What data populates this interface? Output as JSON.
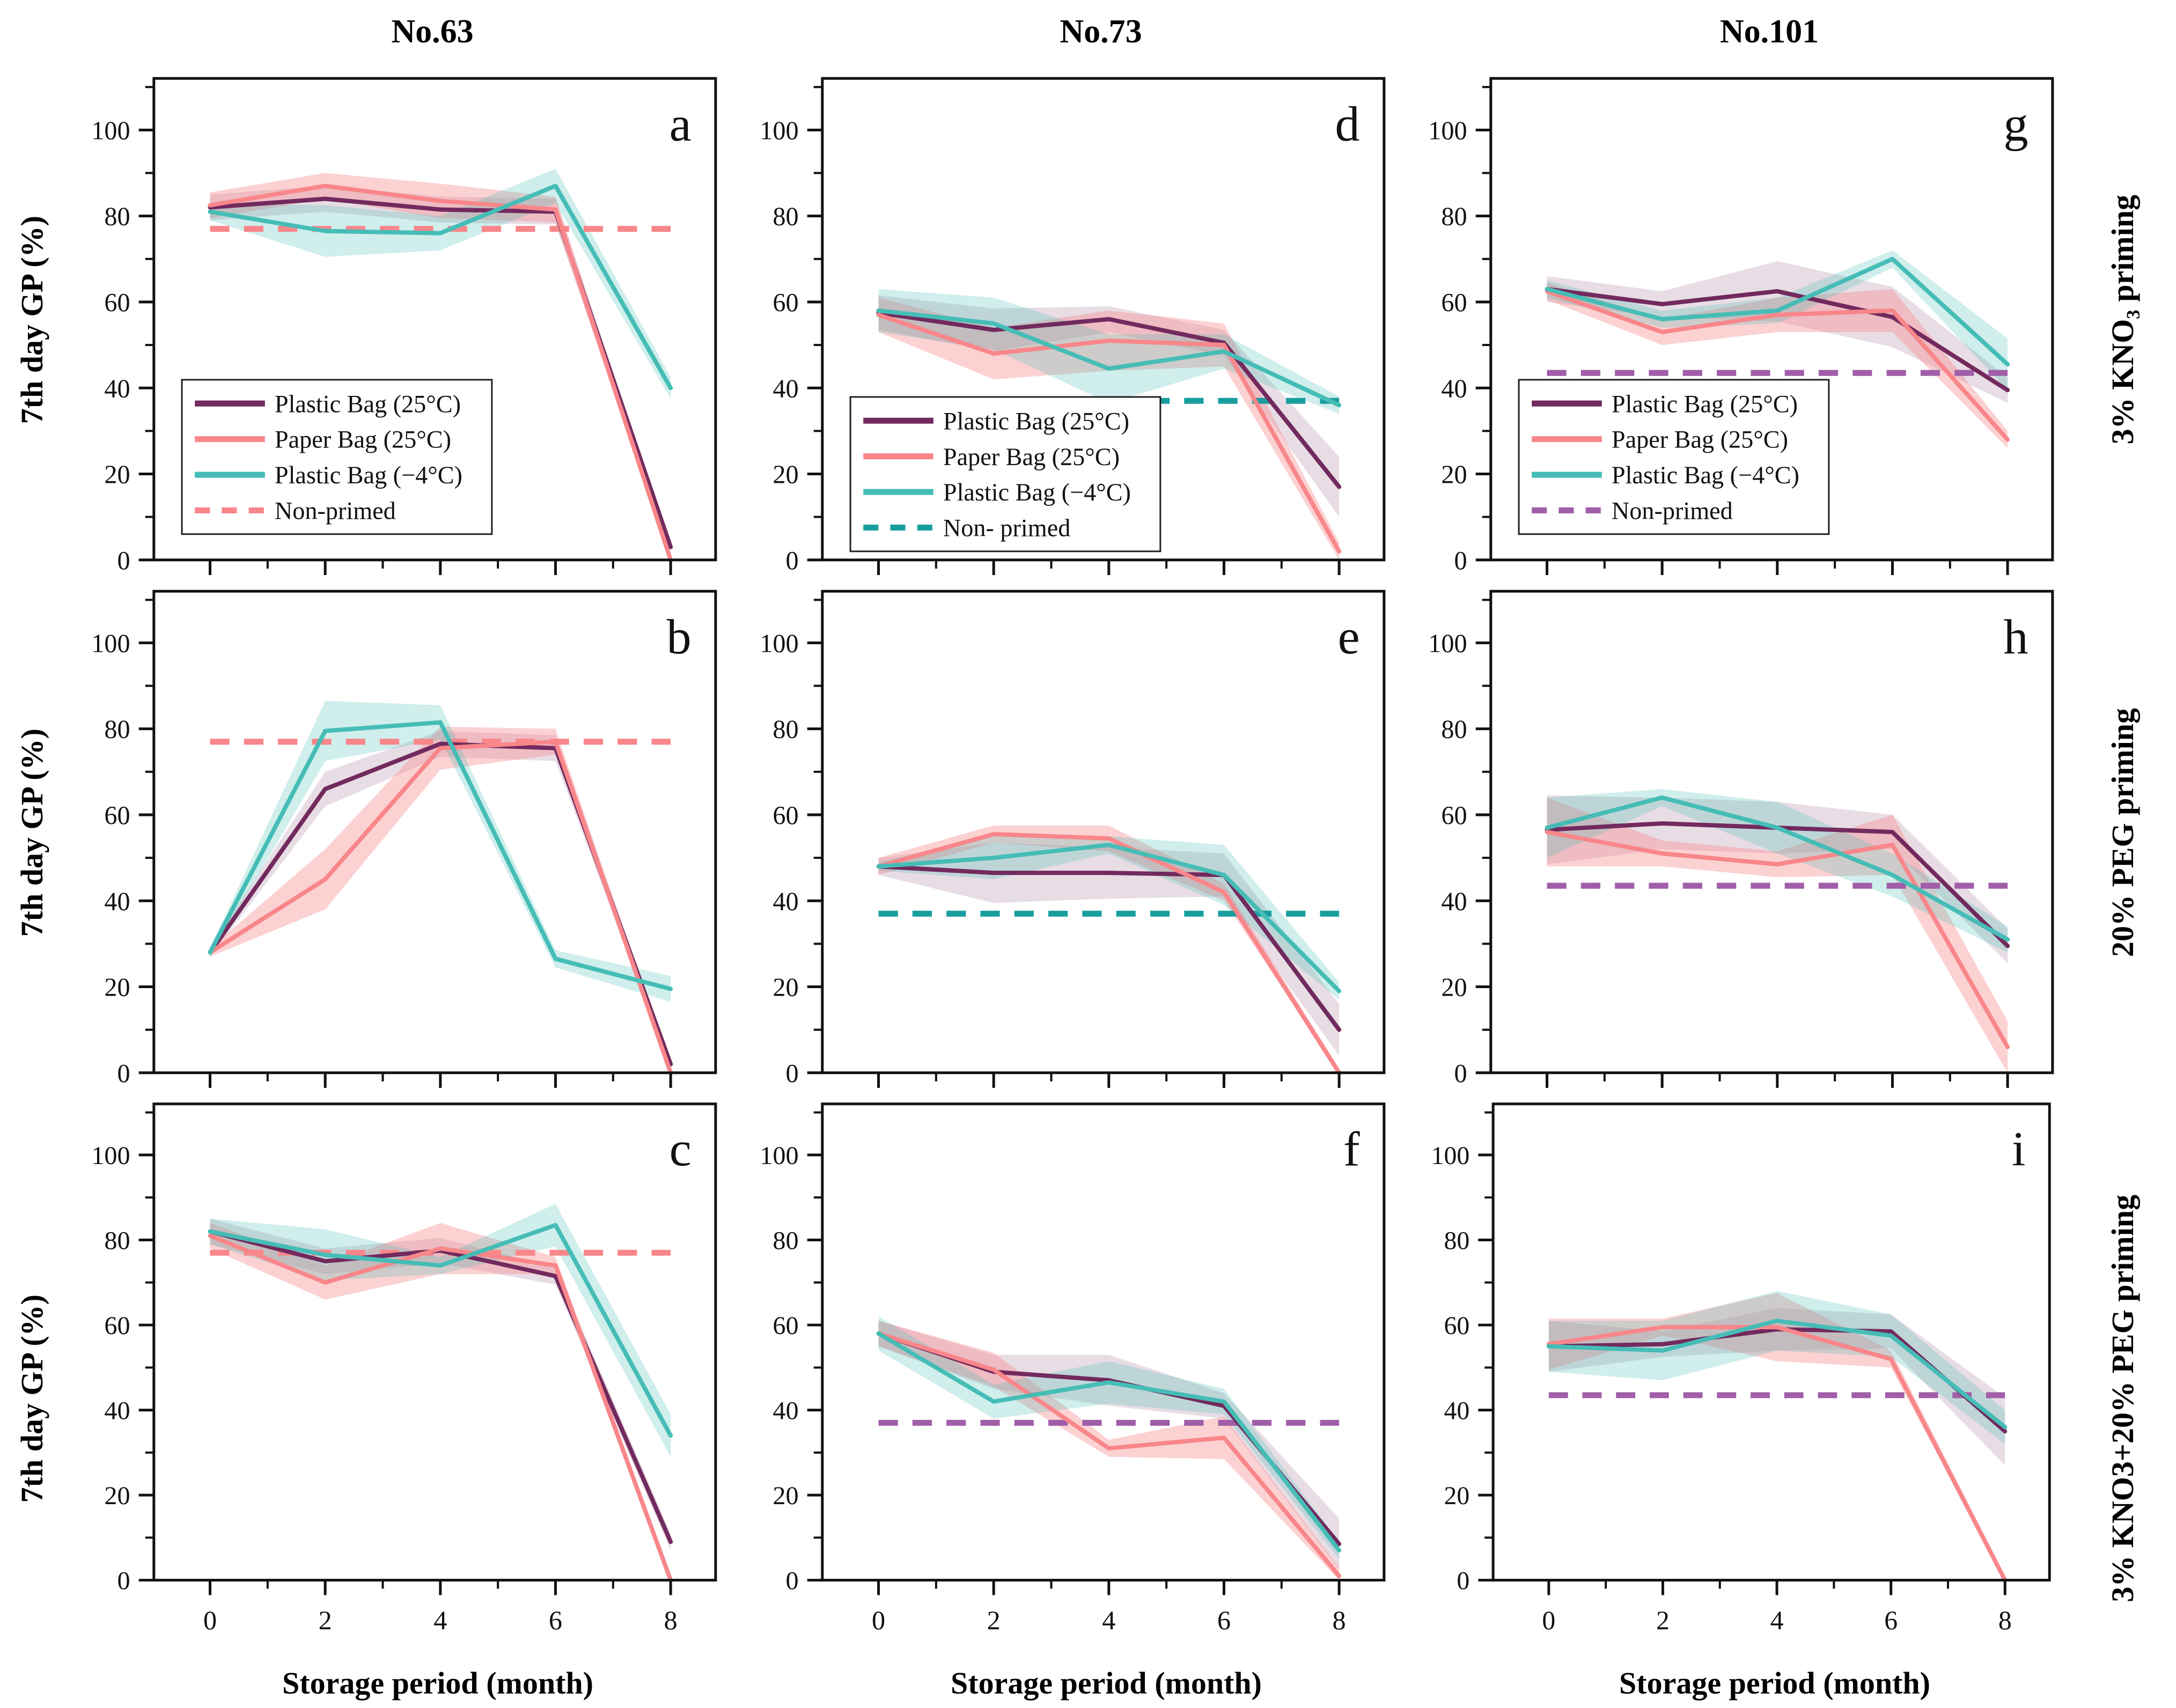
{
  "page": {
    "column_titles": [
      "No.63",
      "No.73",
      "No.101"
    ],
    "row_labels": [
      "3% KNO₃ priming",
      "20% PEG priming",
      "3% KNO3+20% PEG priming"
    ],
    "ylabel": "7th day GP (%)",
    "xlabel": "Storage period (month)"
  },
  "colors": {
    "plastic_25": "#722a5e",
    "paper_25": "#f8868a",
    "plastic_minus4": "#45bdb6",
    "nonprimed_salmon": "#f8868a",
    "nonprimed_teal": "#189e9e",
    "nonprimed_purple": "#a05ea8",
    "axis": "#111111"
  },
  "legend_entries": [
    "Plastic Bag (25°C)",
    "Paper Bag (25°C)",
    "Plastic Bag (−4°C)"
  ],
  "chart_data": [
    {
      "type": "line",
      "letter": "a",
      "column": "No.63",
      "row_label": "3% KNO₃ priming",
      "x": [
        0,
        2,
        4,
        6,
        8
      ],
      "yticks": [
        0,
        20,
        40,
        60,
        80,
        100
      ],
      "ylim": [
        0,
        112
      ],
      "xlabel_visible": false,
      "legend_visible": true,
      "legend_y0": 6,
      "series": [
        {
          "name": "Plastic Bag (25°C)",
          "color_key": "plastic_25",
          "band_opacity": 0.16,
          "values": [
            82,
            84,
            81.5,
            81,
            3
          ],
          "band": [
            3,
            3,
            3,
            3,
            1
          ]
        },
        {
          "name": "Paper Bag (25°C)",
          "color_key": "paper_25",
          "band_opacity": 0.38,
          "values": [
            82.5,
            87,
            83.5,
            81.5,
            0
          ],
          "band": [
            3,
            3,
            4,
            3,
            1
          ]
        },
        {
          "name": "Plastic Bag (−4°C)",
          "color_key": "plastic_minus4",
          "band_opacity": 0.26,
          "values": [
            81,
            76.5,
            76,
            87,
            40
          ],
          "band": [
            2,
            6,
            4,
            4,
            2.5
          ]
        }
      ],
      "nonprimed": {
        "value": 77,
        "color_key": "nonprimed_salmon",
        "legend_label": "Non-primed"
      }
    },
    {
      "type": "line",
      "letter": "b",
      "column": "No.63",
      "row_label": "20% PEG priming",
      "x": [
        0,
        2,
        4,
        6,
        8
      ],
      "yticks": [
        0,
        20,
        40,
        60,
        80,
        100
      ],
      "ylim": [
        0,
        112
      ],
      "xlabel_visible": false,
      "legend_visible": false,
      "series": [
        {
          "name": "Plastic Bag (25°C)",
          "color_key": "plastic_25",
          "band_opacity": 0.16,
          "values": [
            28,
            66,
            76.5,
            75.5,
            2
          ],
          "band": [
            1,
            4,
            3,
            3,
            1
          ]
        },
        {
          "name": "Paper Bag (25°C)",
          "color_key": "paper_25",
          "band_opacity": 0.38,
          "values": [
            28,
            45,
            75.5,
            77,
            0
          ],
          "band": [
            1,
            7,
            5,
            3,
            1
          ]
        },
        {
          "name": "Plastic Bag (−4°C)",
          "color_key": "plastic_minus4",
          "band_opacity": 0.26,
          "values": [
            28,
            79.5,
            81.5,
            26.5,
            19.5
          ],
          "band": [
            1,
            7,
            4,
            2,
            3
          ]
        }
      ],
      "nonprimed": {
        "value": 77,
        "color_key": "nonprimed_salmon",
        "legend_label": "Non-primed"
      }
    },
    {
      "type": "line",
      "letter": "c",
      "column": "No.63",
      "row_label": "3% KNO3+20% PEG priming",
      "x": [
        0,
        2,
        4,
        6,
        8
      ],
      "yticks": [
        0,
        20,
        40,
        60,
        80,
        100
      ],
      "ylim": [
        0,
        112
      ],
      "xlabel_visible": true,
      "legend_visible": false,
      "series": [
        {
          "name": "Plastic Bag (25°C)",
          "color_key": "plastic_25",
          "band_opacity": 0.16,
          "values": [
            82,
            75,
            77.5,
            71.5,
            9
          ],
          "band": [
            3,
            3,
            3,
            2,
            2
          ]
        },
        {
          "name": "Paper Bag (25°C)",
          "color_key": "paper_25",
          "band_opacity": 0.38,
          "values": [
            81,
            70,
            78,
            74,
            0
          ],
          "band": [
            3,
            4,
            6,
            2,
            1
          ]
        },
        {
          "name": "Plastic Bag (−4°C)",
          "color_key": "plastic_minus4",
          "band_opacity": 0.26,
          "values": [
            82,
            76.5,
            74,
            83.5,
            34
          ],
          "band": [
            3,
            6,
            2,
            5,
            5
          ]
        }
      ],
      "nonprimed": {
        "value": 77,
        "color_key": "nonprimed_salmon",
        "legend_label": "Non-primed"
      }
    },
    {
      "type": "line",
      "letter": "d",
      "column": "No.73",
      "row_label": "3% KNO₃ priming",
      "x": [
        0,
        2,
        4,
        6,
        8
      ],
      "yticks": [
        0,
        20,
        40,
        60,
        80,
        100
      ],
      "ylim": [
        0,
        112
      ],
      "xlabel_visible": false,
      "legend_visible": true,
      "legend_y0": 2,
      "series": [
        {
          "name": "Plastic Bag (25°C)",
          "color_key": "plastic_25",
          "band_opacity": 0.16,
          "values": [
            57.5,
            53.5,
            56,
            50.5,
            17
          ],
          "band": [
            4,
            5,
            3,
            3,
            7
          ]
        },
        {
          "name": "Paper Bag (25°C)",
          "color_key": "paper_25",
          "band_opacity": 0.38,
          "values": [
            57,
            48,
            51,
            50,
            2
          ],
          "band": [
            4,
            6,
            7,
            5,
            2
          ]
        },
        {
          "name": "Plastic Bag (−4°C)",
          "color_key": "plastic_minus4",
          "band_opacity": 0.26,
          "values": [
            58,
            55,
            44.5,
            48.5,
            36
          ],
          "band": [
            5,
            6,
            8,
            4,
            2
          ]
        }
      ],
      "nonprimed": {
        "value": 37,
        "color_key": "nonprimed_teal",
        "legend_label": "Non- primed"
      }
    },
    {
      "type": "line",
      "letter": "e",
      "column": "No.73",
      "row_label": "20% PEG priming",
      "x": [
        0,
        2,
        4,
        6,
        8
      ],
      "yticks": [
        0,
        20,
        40,
        60,
        80,
        100
      ],
      "ylim": [
        0,
        112
      ],
      "xlabel_visible": false,
      "legend_visible": false,
      "series": [
        {
          "name": "Plastic Bag (25°C)",
          "color_key": "plastic_25",
          "band_opacity": 0.16,
          "values": [
            48,
            46.5,
            46.5,
            46,
            10
          ],
          "band": [
            2,
            7,
            6,
            5,
            6
          ]
        },
        {
          "name": "Paper Bag (25°C)",
          "color_key": "paper_25",
          "band_opacity": 0.38,
          "values": [
            48,
            55.5,
            54.5,
            42,
            0
          ],
          "band": [
            2,
            2,
            3,
            2,
            1
          ]
        },
        {
          "name": "Plastic Bag (−4°C)",
          "color_key": "plastic_minus4",
          "band_opacity": 0.26,
          "values": [
            48,
            50,
            53,
            46,
            19
          ],
          "band": [
            1,
            5,
            2,
            7,
            2
          ]
        }
      ],
      "nonprimed": {
        "value": 37,
        "color_key": "nonprimed_teal",
        "legend_label": "Non- primed"
      }
    },
    {
      "type": "line",
      "letter": "f",
      "column": "No.73",
      "row_label": "3% KNO3+20% PEG priming",
      "x": [
        0,
        2,
        4,
        6,
        8
      ],
      "yticks": [
        0,
        20,
        40,
        60,
        80,
        100
      ],
      "ylim": [
        0,
        112
      ],
      "xlabel_visible": true,
      "legend_visible": false,
      "series": [
        {
          "name": "Plastic Bag (25°C)",
          "color_key": "plastic_25",
          "band_opacity": 0.16,
          "values": [
            58,
            49,
            47,
            41,
            8.5
          ],
          "band": [
            3,
            4,
            6,
            3,
            6
          ]
        },
        {
          "name": "Paper Bag (25°C)",
          "color_key": "paper_25",
          "band_opacity": 0.38,
          "values": [
            58,
            49.5,
            31,
            33.5,
            1
          ],
          "band": [
            3,
            4,
            2,
            5,
            2
          ]
        },
        {
          "name": "Plastic Bag (−4°C)",
          "color_key": "plastic_minus4",
          "band_opacity": 0.26,
          "values": [
            58,
            42,
            46.5,
            42,
            7
          ],
          "band": [
            4,
            4,
            5,
            3,
            2
          ]
        }
      ],
      "nonprimed": {
        "value": 37,
        "color_key": "nonprimed_purple",
        "legend_label": "Non-primed"
      }
    },
    {
      "type": "line",
      "letter": "g",
      "column": "No.101",
      "row_label": "3% KNO₃ priming",
      "x": [
        0,
        2,
        4,
        6,
        8
      ],
      "yticks": [
        0,
        20,
        40,
        60,
        80,
        100
      ],
      "ylim": [
        0,
        112
      ],
      "xlabel_visible": false,
      "legend_visible": true,
      "legend_y0": 6,
      "series": [
        {
          "name": "Plastic Bag (25°C)",
          "color_key": "plastic_25",
          "band_opacity": 0.16,
          "values": [
            63,
            59.5,
            62.5,
            56.5,
            39.5
          ],
          "band": [
            3,
            3,
            7,
            7,
            3
          ]
        },
        {
          "name": "Paper Bag (25°C)",
          "color_key": "paper_25",
          "band_opacity": 0.38,
          "values": [
            62.5,
            53,
            57,
            58,
            28
          ],
          "band": [
            2,
            3,
            4,
            5,
            2
          ]
        },
        {
          "name": "Plastic Bag (−4°C)",
          "color_key": "plastic_minus4",
          "band_opacity": 0.26,
          "values": [
            63,
            56,
            58,
            70,
            45.5
          ],
          "band": [
            2,
            2,
            3,
            2,
            6
          ]
        }
      ],
      "nonprimed": {
        "value": 43.5,
        "color_key": "nonprimed_purple",
        "legend_label": "Non-primed"
      }
    },
    {
      "type": "line",
      "letter": "h",
      "column": "No.101",
      "row_label": "20% PEG priming",
      "x": [
        0,
        2,
        4,
        6,
        8
      ],
      "yticks": [
        0,
        20,
        40,
        60,
        80,
        100
      ],
      "ylim": [
        0,
        112
      ],
      "xlabel_visible": false,
      "legend_visible": false,
      "series": [
        {
          "name": "Plastic Bag (25°C)",
          "color_key": "plastic_25",
          "band_opacity": 0.16,
          "values": [
            56.5,
            58,
            57,
            56,
            29.5
          ],
          "band": [
            8,
            6,
            6,
            4,
            4
          ]
        },
        {
          "name": "Paper Bag (25°C)",
          "color_key": "paper_25",
          "band_opacity": 0.38,
          "values": [
            56,
            51,
            48.5,
            53,
            6
          ],
          "band": [
            8,
            3,
            3,
            7,
            6
          ]
        },
        {
          "name": "Plastic Bag (−4°C)",
          "color_key": "plastic_minus4",
          "band_opacity": 0.26,
          "values": [
            57,
            64,
            57,
            46,
            31
          ],
          "band": [
            7,
            2,
            6,
            5,
            3
          ]
        }
      ],
      "nonprimed": {
        "value": 43.5,
        "color_key": "nonprimed_purple",
        "legend_label": "Non-primed"
      }
    },
    {
      "type": "line",
      "letter": "i",
      "column": "No.101",
      "row_label": "3% KNO3+20% PEG priming",
      "x": [
        0,
        2,
        4,
        6,
        8
      ],
      "yticks": [
        0,
        20,
        40,
        60,
        80,
        100
      ],
      "ylim": [
        0,
        112
      ],
      "xlabel_visible": true,
      "legend_visible": false,
      "series": [
        {
          "name": "Plastic Bag (25°C)",
          "color_key": "plastic_25",
          "band_opacity": 0.16,
          "values": [
            55,
            55.5,
            59,
            58.5,
            35
          ],
          "band": [
            6,
            3,
            5,
            4,
            8
          ]
        },
        {
          "name": "Paper Bag (25°C)",
          "color_key": "paper_25",
          "band_opacity": 0.38,
          "values": [
            55.5,
            59.5,
            59.5,
            52,
            0
          ],
          "band": [
            6,
            2,
            8,
            2,
            1
          ]
        },
        {
          "name": "Plastic Bag (−4°C)",
          "color_key": "plastic_minus4",
          "band_opacity": 0.26,
          "values": [
            55,
            54,
            61,
            57.5,
            36
          ],
          "band": [
            6,
            7,
            7,
            5,
            4
          ]
        }
      ],
      "nonprimed": {
        "value": 43.5,
        "color_key": "nonprimed_purple",
        "legend_label": "Non-primed"
      }
    }
  ]
}
